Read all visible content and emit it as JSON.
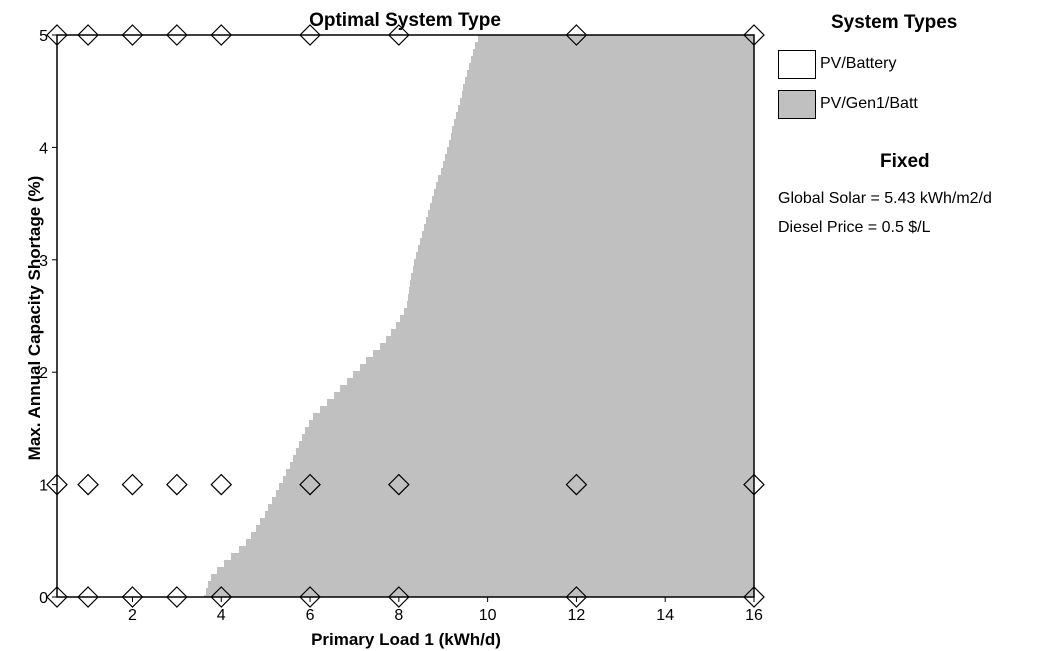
{
  "chart_data": {
    "type": "heatmap",
    "title": "Optimal System Type",
    "xlabel": "Primary Load 1 (kWh/d)",
    "ylabel": "Max. Annual Capacity Shortage (%)",
    "xlim": [
      0.3,
      16
    ],
    "ylim": [
      0,
      5
    ],
    "x_ticks": [
      2,
      4,
      6,
      8,
      10,
      12,
      14,
      16
    ],
    "y_ticks": [
      0,
      1,
      2,
      3,
      4,
      5
    ],
    "colors": {
      "PV/Battery": "#ffffff",
      "PV/Gen1/Batt": "#c0c0c0"
    },
    "boundary": {
      "description_of_regions": [
        "PV/Battery",
        "PV/Gen1/Batt"
      ],
      "points": [
        [
          3.6,
          0.0
        ],
        [
          3.8,
          0.2
        ],
        [
          4.2,
          0.35
        ],
        [
          4.6,
          0.5
        ],
        [
          5.0,
          0.75
        ],
        [
          5.4,
          1.05
        ],
        [
          5.7,
          1.3
        ],
        [
          5.9,
          1.5
        ],
        [
          6.1,
          1.62
        ],
        [
          6.5,
          1.78
        ],
        [
          6.9,
          1.95
        ],
        [
          7.3,
          2.12
        ],
        [
          7.7,
          2.28
        ],
        [
          8.0,
          2.45
        ],
        [
          8.2,
          2.62
        ],
        [
          8.3,
          2.9
        ],
        [
          8.5,
          3.2
        ],
        [
          8.8,
          3.6
        ],
        [
          9.1,
          4.0
        ],
        [
          9.4,
          4.45
        ],
        [
          9.6,
          4.75
        ],
        [
          9.8,
          5.0
        ]
      ]
    },
    "sensitivity_points": {
      "marker": "diamond",
      "x": [
        0.3,
        1,
        2,
        3,
        4,
        6,
        8,
        12,
        16
      ],
      "y": [
        0,
        1,
        5
      ]
    }
  },
  "legend": {
    "title": "System Types",
    "items": [
      {
        "label": "PV/Battery",
        "color": "#ffffff"
      },
      {
        "label": "PV/Gen1/Batt",
        "color": "#c0c0c0"
      }
    ]
  },
  "fixed": {
    "title": "Fixed",
    "lines": [
      "Global Solar = 5.43 kWh/m2/d",
      "Diesel Price = 0.5 $/L"
    ]
  }
}
